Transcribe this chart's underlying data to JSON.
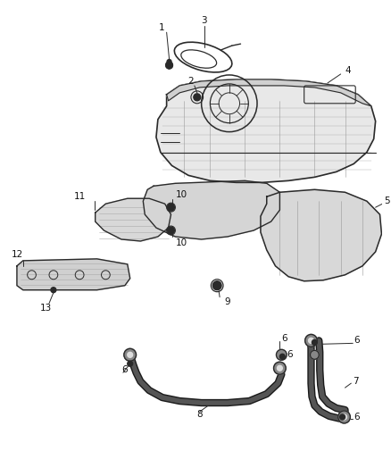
{
  "bg_color": "#ffffff",
  "fig_width": 4.38,
  "fig_height": 5.33,
  "dpi": 100,
  "line_color": "#2a2a2a",
  "line_color_light": "#555555",
  "fill_light": "#e0e0e0",
  "fill_mid": "#c8c8c8",
  "fill_dark": "#1a1a1a",
  "text_color": "#111111",
  "font_size": 7.5,
  "small_dot_r": 0.004,
  "mount_dot_r": 0.008
}
